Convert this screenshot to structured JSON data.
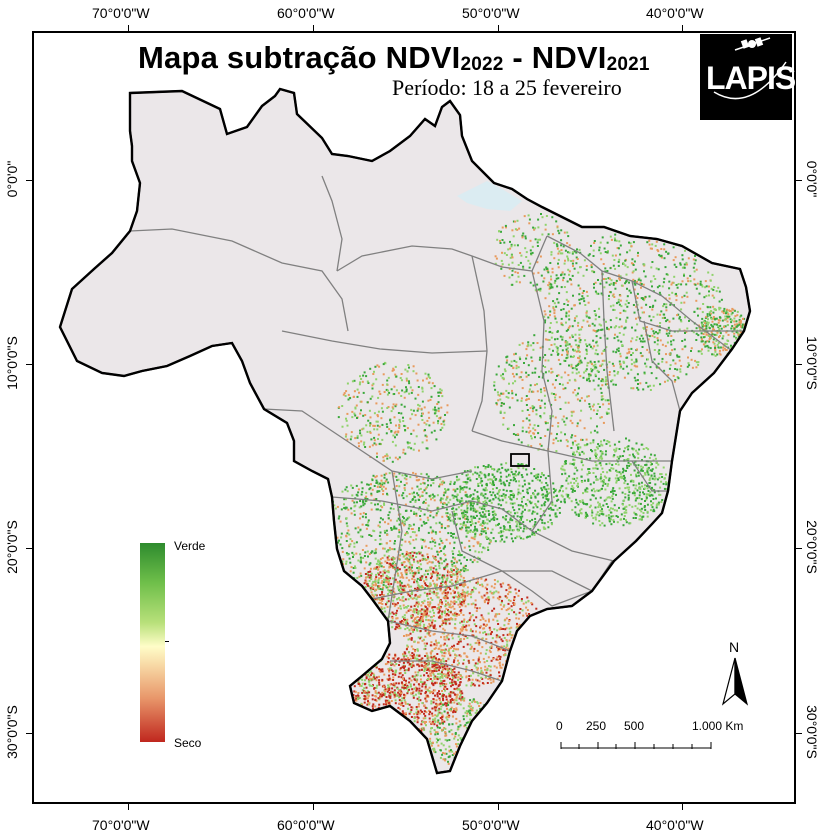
{
  "title": {
    "main": "Mapa subtração NDVI",
    "year_a": "2022",
    "dash": " - NDVI",
    "year_b": "2021"
  },
  "subtitle": "Período: 18 a 25 fevereiro",
  "logo_text": "LAPIS",
  "axis": {
    "top_ticks": [
      "70°0'0\"W",
      "60°0'0\"W",
      "50°0'0\"W",
      "40°0'0\"W"
    ],
    "bottom_ticks": [
      "70°0'0\"W",
      "60°0'0\"W",
      "50°0'0\"W",
      "40°0'0\"W"
    ],
    "left_ticks": [
      "0°0'0\"",
      "10°0'0\"S",
      "20°0'0\"S",
      "30°0'0\"S"
    ],
    "right_ticks": [
      "0°0'0\"",
      "10°0'0\"S",
      "20°0'0\"S",
      "30°0'0\"S"
    ]
  },
  "legend": {
    "top_label": "Verde",
    "bottom_label": "Seco",
    "colors": [
      "#2e8b2e",
      "#6fbf4a",
      "#b8e07a",
      "#fffdc8",
      "#f7d6a3",
      "#e8966a",
      "#c0271e"
    ]
  },
  "scale": {
    "labels": [
      "0",
      "250",
      "500",
      "1.000 Km"
    ]
  },
  "north": "N",
  "colors": {
    "land": "#ebe7e9",
    "border": "#000000",
    "state_border": "#808080",
    "green": "#39a83a",
    "light_green": "#8fd36b",
    "orange": "#e89a5c",
    "red": "#c22a1c"
  }
}
